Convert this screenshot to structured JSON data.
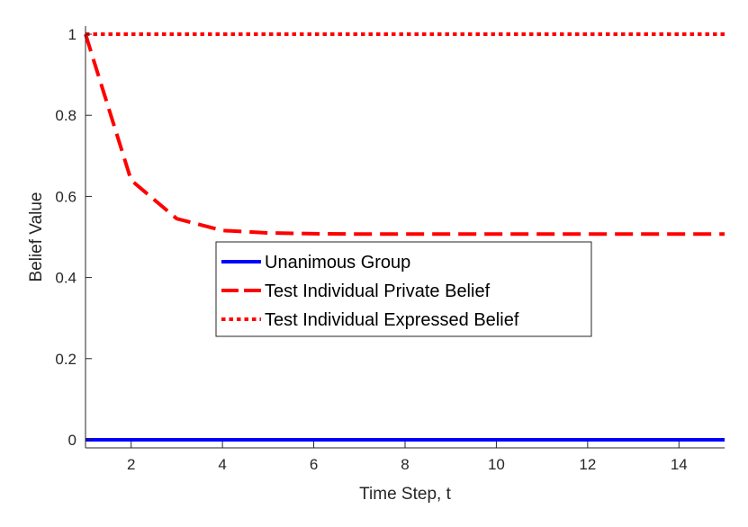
{
  "chart_data": {
    "type": "line",
    "xlabel": "Time Step, t",
    "ylabel": "Belief Value",
    "xlim": [
      1,
      15
    ],
    "ylim": [
      -0.02,
      1.02
    ],
    "xticks": [
      2,
      4,
      6,
      8,
      10,
      12,
      14
    ],
    "yticks": [
      0,
      0.2,
      0.4,
      0.6,
      0.8,
      1
    ],
    "grid": false,
    "legend_position": "center",
    "series": [
      {
        "name": "Unanimous Group",
        "style": "solid",
        "color": "#0000ff",
        "x": [
          1,
          2,
          3,
          4,
          5,
          6,
          7,
          8,
          9,
          10,
          11,
          12,
          13,
          14,
          15
        ],
        "y": [
          0,
          0,
          0,
          0,
          0,
          0,
          0,
          0,
          0,
          0,
          0,
          0,
          0,
          0,
          0
        ]
      },
      {
        "name": "Test Individual Private Belief",
        "style": "dashed",
        "color": "#ff0000",
        "x": [
          1,
          2,
          3,
          4,
          5,
          6,
          7,
          8,
          9,
          10,
          11,
          12,
          13,
          14,
          15
        ],
        "y": [
          1,
          0.64,
          0.545,
          0.516,
          0.51,
          0.508,
          0.507,
          0.507,
          0.507,
          0.507,
          0.507,
          0.507,
          0.507,
          0.507,
          0.507
        ]
      },
      {
        "name": "Test Individual Expressed Belief",
        "style": "dotted",
        "color": "#ff0000",
        "x": [
          1,
          2,
          3,
          4,
          5,
          6,
          7,
          8,
          9,
          10,
          11,
          12,
          13,
          14,
          15
        ],
        "y": [
          1,
          1,
          1,
          1,
          1,
          1,
          1,
          1,
          1,
          1,
          1,
          1,
          1,
          1,
          1
        ]
      }
    ]
  }
}
